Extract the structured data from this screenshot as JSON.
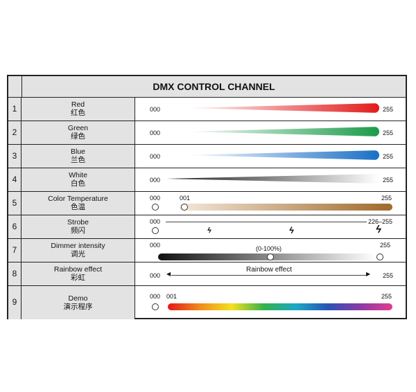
{
  "title": "DMX CONTROL CHANNEL",
  "rows": [
    {
      "num": "1",
      "en": "Red",
      "zh": "红色",
      "min": "000",
      "max": "255",
      "color": "#e21b1b"
    },
    {
      "num": "2",
      "en": "Green",
      "zh": "绿色",
      "min": "000",
      "max": "255",
      "color": "#1b9b4a"
    },
    {
      "num": "3",
      "en": "Blue",
      "zh": "兰色",
      "min": "000",
      "max": "255",
      "color": "#1a6fc4"
    },
    {
      "num": "4",
      "en": "White",
      "zh": "白色",
      "min": "000",
      "max": "255",
      "color": "#333333"
    },
    {
      "num": "5",
      "en": "Color Temperature",
      "zh": "色温",
      "min": "000",
      "mid": "001",
      "max": "255",
      "color": "#a06a2a"
    },
    {
      "num": "6",
      "en": "Strobe",
      "zh": "频闪",
      "min": "000",
      "max": "226–255"
    },
    {
      "num": "7",
      "en": "Dimmer intensity",
      "zh": "调光",
      "min": "000",
      "mid": "(0-100%)",
      "max": "255"
    },
    {
      "num": "8",
      "en": "Rainbow effect",
      "zh": "彩虹",
      "min": "000",
      "mid": "Rainbow effect",
      "max": "255"
    },
    {
      "num": "9",
      "en": "Demo",
      "zh": "演示程序",
      "min": "000",
      "mid": "001",
      "max": "255"
    }
  ]
}
